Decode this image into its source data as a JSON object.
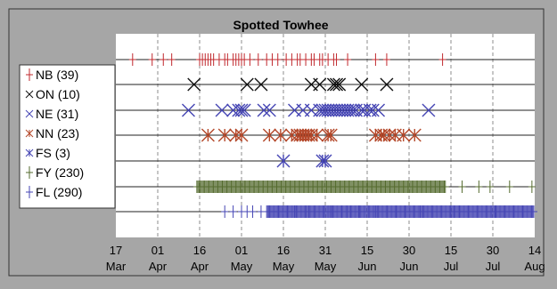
{
  "chart_data": {
    "type": "scatter",
    "title": "Spotted Towhee",
    "xlabel": "",
    "ylabel": "",
    "x_domain": [
      "2000-03-17",
      "2000-08-14"
    ],
    "x_ticks": [
      {
        "date": "2000-03-17",
        "day": "17",
        "month": "Mar"
      },
      {
        "date": "2000-04-01",
        "day": "01",
        "month": "Apr"
      },
      {
        "date": "2000-04-16",
        "day": "16",
        "month": "Apr"
      },
      {
        "date": "2000-05-01",
        "day": "01",
        "month": "May"
      },
      {
        "date": "2000-05-16",
        "day": "16",
        "month": "May"
      },
      {
        "date": "2000-05-31",
        "day": "31",
        "month": "May"
      },
      {
        "date": "2000-06-15",
        "day": "15",
        "month": "Jun"
      },
      {
        "date": "2000-06-30",
        "day": "30",
        "month": "Jun"
      },
      {
        "date": "2000-07-15",
        "day": "15",
        "month": "Jul"
      },
      {
        "date": "2000-07-30",
        "day": "30",
        "month": "Jul"
      },
      {
        "date": "2000-08-14",
        "day": "14",
        "month": "Aug"
      }
    ],
    "grid": "vertical dashed at ticks",
    "legend_position": "left",
    "series": [
      {
        "name": "NB",
        "label": "NB (39)",
        "marker": "plus",
        "color": "#c0282d",
        "big": false,
        "dates": [
          "2000-03-23",
          "2000-03-30",
          "2000-04-03",
          "2000-04-06",
          "2000-04-16",
          "2000-04-17",
          "2000-04-18",
          "2000-04-19",
          "2000-04-20",
          "2000-04-21",
          "2000-04-23",
          "2000-04-25",
          "2000-04-26",
          "2000-04-28",
          "2000-04-29",
          "2000-04-30",
          "2000-05-01",
          "2000-05-02",
          "2000-05-04",
          "2000-05-07",
          "2000-05-10",
          "2000-05-12",
          "2000-05-14",
          "2000-05-17",
          "2000-05-19",
          "2000-05-21",
          "2000-05-22",
          "2000-05-24",
          "2000-05-26",
          "2000-05-27",
          "2000-05-29",
          "2000-05-30",
          "2000-06-01",
          "2000-06-03",
          "2000-06-04",
          "2000-06-08",
          "2000-06-18",
          "2000-06-22",
          "2000-07-12"
        ]
      },
      {
        "name": "ON",
        "label": "ON (10)",
        "marker": "x",
        "color": "#111111",
        "big": true,
        "dates": [
          "2000-04-14",
          "2000-05-03",
          "2000-05-08",
          "2000-05-26",
          "2000-05-29",
          "2000-06-03",
          "2000-06-05",
          "2000-06-04",
          "2000-06-13",
          "2000-06-22"
        ]
      },
      {
        "name": "NE",
        "label": "NE (31)",
        "marker": "x",
        "color": "#4646b4",
        "big": true,
        "dates": [
          "2000-04-12",
          "2000-04-24",
          "2000-04-28",
          "2000-04-30",
          "2000-05-01",
          "2000-05-02",
          "2000-05-09",
          "2000-05-11",
          "2000-05-20",
          "2000-05-23",
          "2000-05-26",
          "2000-05-29",
          "2000-05-30",
          "2000-05-31",
          "2000-06-01",
          "2000-06-02",
          "2000-06-03",
          "2000-06-04",
          "2000-06-05",
          "2000-06-06",
          "2000-06-07",
          "2000-06-08",
          "2000-06-09",
          "2000-06-10",
          "2000-06-11",
          "2000-06-13",
          "2000-06-14",
          "2000-06-16",
          "2000-06-17",
          "2000-06-19",
          "2000-07-07"
        ]
      },
      {
        "name": "NN",
        "label": "NN (23)",
        "marker": "star",
        "color": "#b4482a",
        "big": true,
        "dates": [
          "2000-04-19",
          "2000-04-25",
          "2000-04-29",
          "2000-05-01",
          "2000-05-11",
          "2000-05-15",
          "2000-05-19",
          "2000-05-21",
          "2000-05-22",
          "2000-05-23",
          "2000-05-24",
          "2000-05-25",
          "2000-05-26",
          "2000-05-28",
          "2000-06-01",
          "2000-06-02",
          "2000-06-18",
          "2000-06-20",
          "2000-06-21",
          "2000-06-23",
          "2000-06-25",
          "2000-06-28",
          "2000-07-02"
        ]
      },
      {
        "name": "FS",
        "label": "FS (3)",
        "marker": "star",
        "color": "#4646b4",
        "big": true,
        "dates": [
          "2000-05-16",
          "2000-05-30",
          "2000-05-31"
        ]
      },
      {
        "name": "FY",
        "label": "FY (230)",
        "marker": "plus",
        "color": "#556b2f",
        "big": false,
        "range": {
          "start": "2000-04-15",
          "end": "2000-07-13",
          "count": 225
        },
        "extra_dates": [
          "2000-07-19",
          "2000-07-25",
          "2000-07-29",
          "2000-08-05",
          "2000-08-13"
        ]
      },
      {
        "name": "FL",
        "label": "FL (290)",
        "marker": "plus",
        "color": "#4646b4",
        "big": false,
        "range": {
          "start": "2000-05-10",
          "end": "2000-08-15",
          "count": 275
        },
        "extra_dates": [
          "2000-04-25",
          "2000-04-28",
          "2000-05-01",
          "2000-05-03",
          "2000-05-05",
          "2000-05-08",
          "2000-05-20",
          "2000-05-25",
          "2000-06-02",
          "2000-06-08",
          "2000-06-12",
          "2000-06-18",
          "2000-07-04",
          "2000-07-16",
          "2000-07-31"
        ]
      }
    ]
  }
}
